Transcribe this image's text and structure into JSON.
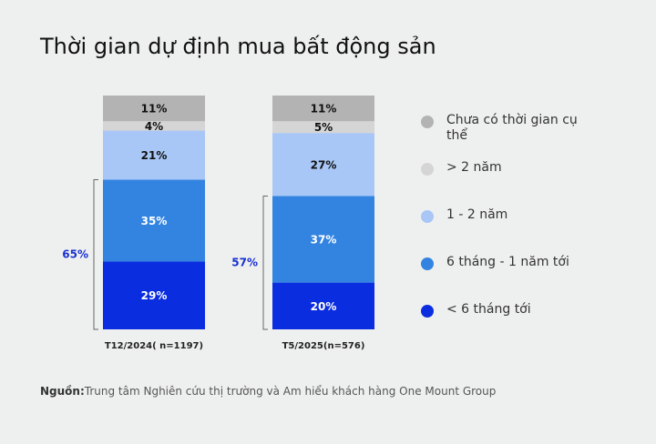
{
  "chart_data": {
    "type": "stacked_bar",
    "title": "Thời gian dự định mua bất động sản",
    "categories": [
      "T12/2024( n=1197)",
      "T5/2025(n=576)"
    ],
    "series": [
      {
        "name": "< 6 tháng tới",
        "color": "#0b2de0",
        "values": [
          29,
          20
        ],
        "value_labels": [
          "29%",
          "20%"
        ]
      },
      {
        "name": "6 tháng - 1 năm tới",
        "color": "#3384e0",
        "values": [
          35,
          37
        ],
        "value_labels": [
          "35%",
          "37%"
        ]
      },
      {
        "name": "1 - 2 năm",
        "color": "#a9c7f6",
        "values": [
          21,
          27
        ],
        "value_labels": [
          "21%",
          "27%"
        ]
      },
      {
        "name": "> 2 năm",
        "color": "#d5d5d5",
        "values": [
          4,
          5
        ],
        "value_labels": [
          "4%",
          "5%"
        ]
      },
      {
        "name": "Chưa có thời gian cụ thể",
        "color": "#b3b3b3",
        "values": [
          11,
          11
        ],
        "value_labels": [
          "11%",
          "11%"
        ]
      }
    ],
    "ylim": [
      0,
      100
    ],
    "bracket_labels": [
      "65%",
      "57%"
    ],
    "source_label": "Nguồn:",
    "source": "Trung tâm Nghiên cứu thị trường và Am hiểu khách hàng One Mount Group"
  }
}
